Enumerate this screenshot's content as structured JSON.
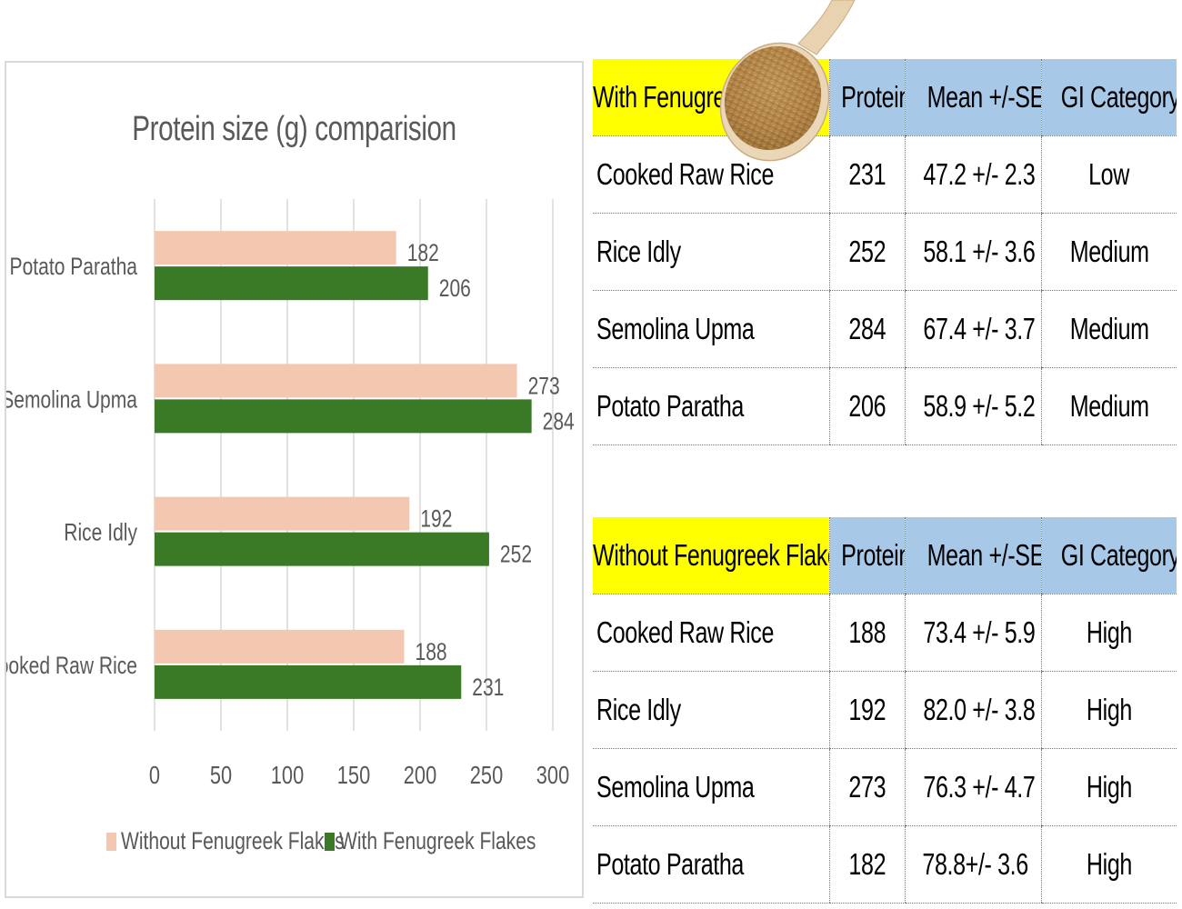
{
  "chart_data": {
    "type": "bar",
    "orientation": "horizontal",
    "title": "Protein size (g) comparision",
    "categories": [
      "Potato Paratha",
      "Semolina Upma",
      "Rice Idly",
      "Cooked Raw Rice"
    ],
    "series": [
      {
        "name": "Without Fenugreek Flakes",
        "values": [
          182,
          273,
          192,
          188
        ],
        "color": "#f4c7b0"
      },
      {
        "name": "With Fenugreek Flakes",
        "values": [
          206,
          284,
          252,
          231
        ],
        "color": "#3a7a26"
      }
    ],
    "xlim": [
      0,
      300
    ],
    "xticks": [
      "0",
      "50",
      "100",
      "150",
      "200",
      "250",
      "300"
    ],
    "grid": true,
    "legend_position": "bottom"
  },
  "tables": {
    "with": {
      "headers": [
        "With Fenugreek",
        "Protein",
        "Mean +/-SEM",
        "GI Category"
      ],
      "rows": [
        [
          "Cooked Raw Rice",
          "231",
          "47.2 +/- 2.3",
          "Low"
        ],
        [
          "Rice Idly",
          "252",
          "58.1 +/- 3.6",
          "Medium"
        ],
        [
          "Semolina Upma",
          "284",
          "67.4 +/- 3.7",
          "Medium"
        ],
        [
          "Potato Paratha",
          "206",
          "58.9 +/- 5.2",
          "Medium"
        ]
      ]
    },
    "without": {
      "headers": [
        "Without Fenugreek Flakes",
        "Protein",
        "Mean +/-SEM",
        "GI Category"
      ],
      "rows": [
        [
          "Cooked Raw Rice",
          "188",
          "73.4 +/- 5.9",
          "High"
        ],
        [
          "Rice Idly",
          "192",
          "82.0 +/- 3.8",
          "High"
        ],
        [
          "Semolina Upma",
          "273",
          "76.3 +/- 4.7",
          "High"
        ],
        [
          "Potato Paratha",
          "182",
          "78.8+/- 3.6",
          "High"
        ]
      ]
    }
  },
  "colors": {
    "header_yellow": "#ffff00",
    "header_blue": "#a8c8e8",
    "axis_text": "#595959"
  },
  "decoration": "spoon-of-fenugreek-seeds-icon"
}
